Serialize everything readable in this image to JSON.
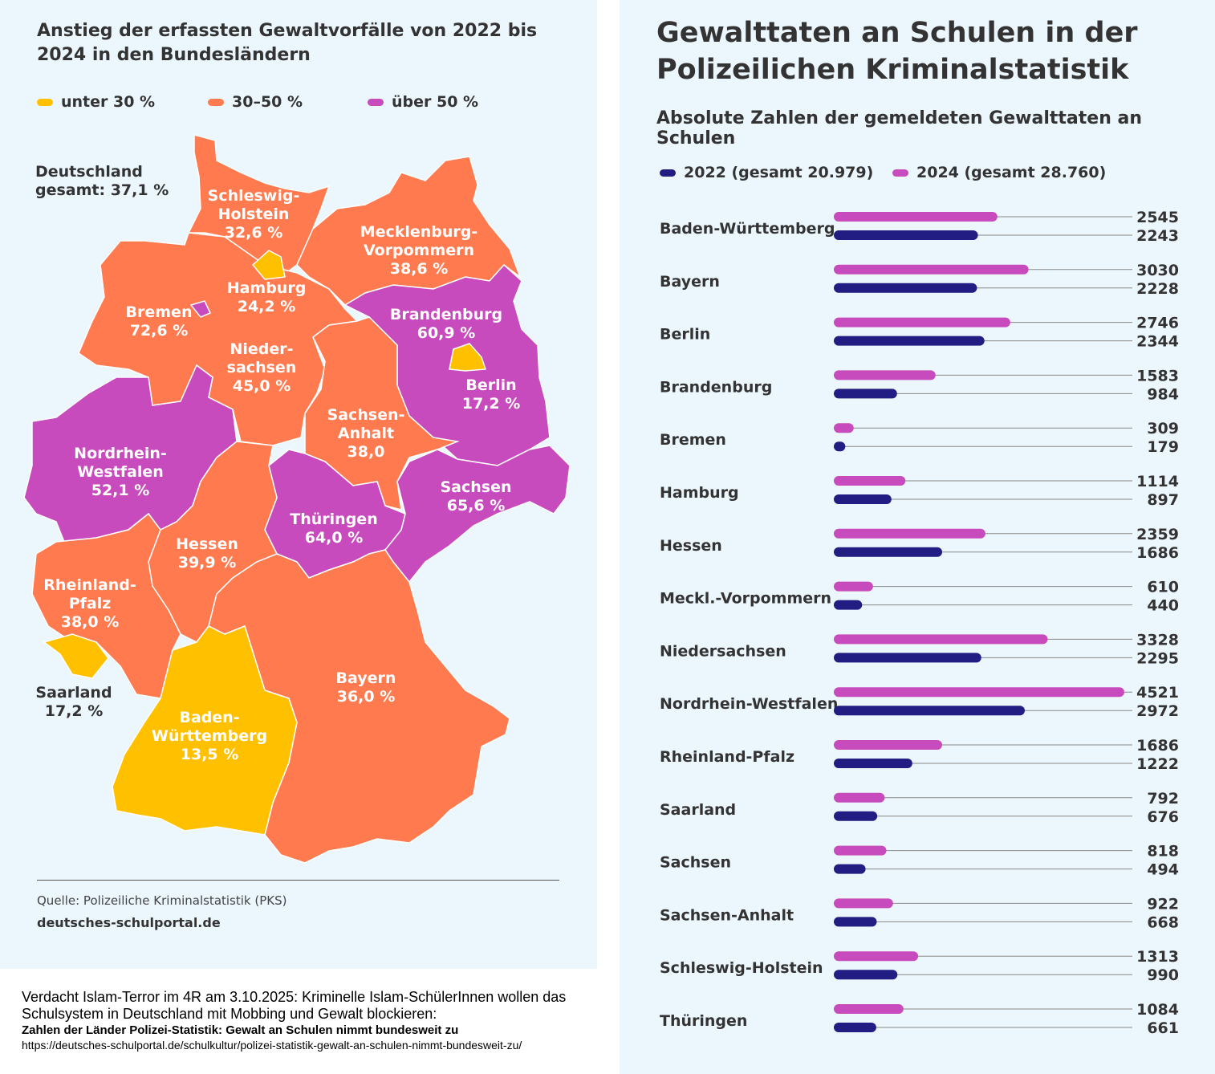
{
  "left": {
    "title": "Anstieg der erfassten Gewaltvorfälle von 2022 bis 2024 in den Bundesländern",
    "legend": [
      {
        "label": "unter 30 %",
        "color": "#ffc000"
      },
      {
        "label": "30–50 %",
        "color": "#ff7a4f"
      },
      {
        "label": "über 50 %",
        "color": "#c84bbd"
      }
    ],
    "total_lines": [
      "Deutschland",
      "gesamt: 37,1 %"
    ],
    "source": "Quelle: Polizeiliche Kriminalstatistik (PKS)",
    "site": "deutsches-schulportal.de",
    "states": [
      {
        "id": "sh",
        "label_lines": [
          "Schleswig-",
          "Holstein"
        ],
        "value": "32,6 %",
        "category": "30–50 %"
      },
      {
        "id": "mv",
        "label_lines": [
          "Mecklenburg-",
          "Vorpommern"
        ],
        "value": "38,6 %",
        "category": "30–50 %"
      },
      {
        "id": "ni",
        "label_lines": [
          "Nieder-",
          "sachsen"
        ],
        "value": "45,0 %",
        "category": "30–50 %"
      },
      {
        "id": "hh",
        "label_lines": [
          "Hamburg"
        ],
        "value": "24,2 %",
        "category": "unter 30 %"
      },
      {
        "id": "hb",
        "label_lines": [
          "Bremen"
        ],
        "value": "72,6 %",
        "category": "über 50 %"
      },
      {
        "id": "bb",
        "label_lines": [
          "Brandenburg"
        ],
        "value": "60,9 %",
        "category": "über 50 %"
      },
      {
        "id": "be",
        "label_lines": [
          "Berlin"
        ],
        "value": "17,2 %",
        "category": "unter 30 %"
      },
      {
        "id": "st",
        "label_lines": [
          "Sachsen-",
          "Anhalt"
        ],
        "value": "38,0",
        "category": "30–50 %"
      },
      {
        "id": "sn",
        "label_lines": [
          "Sachsen"
        ],
        "value": "65,6 %",
        "category": "über 50 %"
      },
      {
        "id": "th",
        "label_lines": [
          "Thüringen"
        ],
        "value": "64,0 %",
        "category": "über 50 %"
      },
      {
        "id": "nw",
        "label_lines": [
          "Nordrhein-",
          "Westfalen"
        ],
        "value": "52,1 %",
        "category": "über 50 %"
      },
      {
        "id": "he",
        "label_lines": [
          "Hessen"
        ],
        "value": "39,9 %",
        "category": "30–50 %"
      },
      {
        "id": "rp",
        "label_lines": [
          "Rheinland-",
          "Pfalz"
        ],
        "value": "38,0 %",
        "category": "30–50 %"
      },
      {
        "id": "sl",
        "label_lines": [
          "Saarland"
        ],
        "value": "17,2 %",
        "category": "unter 30 %"
      },
      {
        "id": "by",
        "label_lines": [
          "Bayern"
        ],
        "value": "36,0 %",
        "category": "30–50 %"
      },
      {
        "id": "bw",
        "label_lines": [
          "Baden-",
          "Württemberg"
        ],
        "value": "13,5 %",
        "category": "unter 30 %"
      }
    ]
  },
  "right": {
    "title_lines": [
      "Gewalttaten an Schulen in der",
      "Polizeilichen Kriminalstatistik"
    ],
    "subtitle": "Absolute Zahlen der gemeldeten Gewalttaten an Schulen"
  },
  "chart_data": {
    "type": "bar",
    "orientation": "horizontal",
    "categories": [
      "Baden-Württemberg",
      "Bayern",
      "Berlin",
      "Brandenburg",
      "Bremen",
      "Hamburg",
      "Hessen",
      "Meckl.-Vorpommern",
      "Niedersachsen",
      "Nordrhein-Westfalen",
      "Rheinland-Pfalz",
      "Saarland",
      "Sachsen",
      "Sachsen-Anhalt",
      "Schleswig-Holstein",
      "Thüringen"
    ],
    "series": [
      {
        "name": "2024 (gesamt 28.760)",
        "color": "#c84bbd",
        "values": [
          2545,
          3030,
          2746,
          1583,
          309,
          1114,
          2359,
          610,
          3328,
          4521,
          1686,
          792,
          818,
          922,
          1313,
          1084
        ]
      },
      {
        "name": "2022 (gesamt 20.979)",
        "color": "#221d82",
        "values": [
          2243,
          2228,
          2344,
          984,
          179,
          897,
          1686,
          440,
          2295,
          2972,
          1222,
          676,
          494,
          668,
          990,
          661
        ]
      }
    ],
    "legend_order": [
      "2022 (gesamt 20.979)",
      "2024 (gesamt 28.760)"
    ],
    "xlim": [
      0,
      4521
    ],
    "grid": false,
    "legend": "top"
  },
  "note": {
    "line1": "Verdacht Islam-Terror im 4R am 3.10.2025: Kriminelle Islam-SchülerInnen wollen das Schulsystem in Deutschland mit Mobbing und Gewalt blockieren:",
    "line2": "Zahlen der Länder Polizei-Statistik: Gewalt an Schulen nimmt bundesweit zu",
    "line3": "https://deutsches-schulportal.de/schulkultur/polizei-statistik-gewalt-an-schulen-nimmt-bundesweit-zu/"
  }
}
